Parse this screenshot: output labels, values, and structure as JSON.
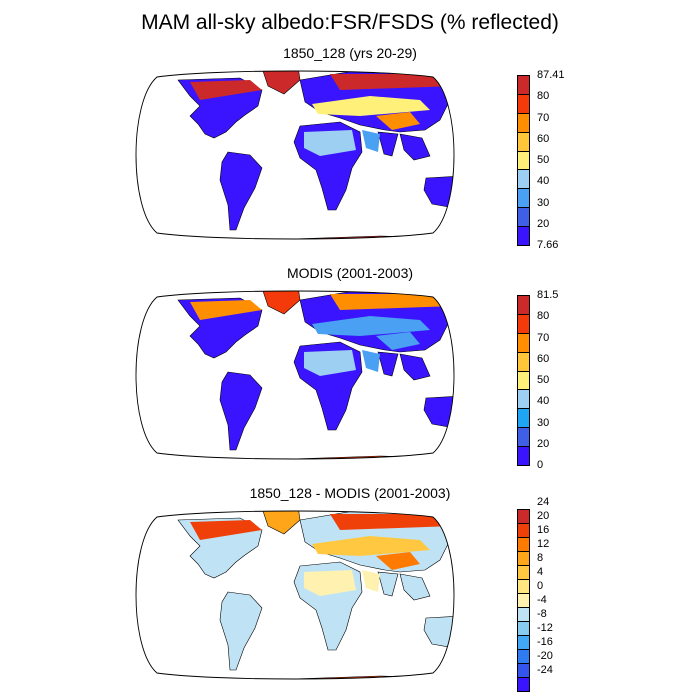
{
  "title": "MAM all-sky albedo:FSR/FSDS (% reflected)",
  "panels": [
    {
      "id": "model",
      "title": "1850_128 (yrs 20-29)",
      "colorbar": {
        "colors": [
          "#3a14ff",
          "#3f5fe6",
          "#4aa0f2",
          "#9ccff2",
          "#fff07a",
          "#ffc63a",
          "#ff8f00",
          "#f43a0a",
          "#cc2a2a"
        ],
        "labels": [
          "7.66",
          "20",
          "30",
          "40",
          "50",
          "60",
          "70",
          "80",
          "87.41"
        ]
      },
      "regions": {
        "land": "#3a14ff",
        "sahara": "#9ccff2",
        "arabia": "#4aa0f2",
        "tibet": "#ff8f00",
        "northern_high_latitudes": "#cc2a2a",
        "antarctica": "#cc2a2a",
        "greenland": "#cc2a2a",
        "mid_latitude_belt": "#fff07a"
      }
    },
    {
      "id": "modis",
      "title": "MODIS (2001-2003)",
      "colorbar": {
        "colors": [
          "#3a14ff",
          "#3f5fe6",
          "#1fa6f2",
          "#9ccff2",
          "#fff07a",
          "#ffc63a",
          "#ff8f00",
          "#f43a0a",
          "#cc2a2a"
        ],
        "labels": [
          "0",
          "20",
          "30",
          "40",
          "50",
          "60",
          "70",
          "80",
          "81.5"
        ]
      },
      "regions": {
        "land": "#3a14ff",
        "sahara": "#9ccff2",
        "arabia": "#4aa0f2",
        "tibet": "#4aa0f2",
        "northern_high_latitudes": "#ff8f00",
        "antarctica": "#f43a0a",
        "greenland": "#f43a0a",
        "mid_latitude_belt": "#4aa0f2"
      }
    },
    {
      "id": "diff",
      "title": "1850_128 - MODIS (2001-2003)",
      "colorbar": {
        "colors": [
          "#3a14ff",
          "#3355ee",
          "#2f7bf2",
          "#40a8f5",
          "#87cbf0",
          "#bfe3f5",
          "#fff2b0",
          "#ffe680",
          "#ffc840",
          "#ffa51a",
          "#ff7a00",
          "#f0400a",
          "#cc2a2a"
        ],
        "labels": [
          "-24",
          "-20",
          "-16",
          "-12",
          "-8",
          "-4",
          "0",
          "4",
          "8",
          "12",
          "16",
          "20",
          "24"
        ]
      },
      "regions": {
        "land": "#bfe3f5",
        "sahara": "#fff2b0",
        "arabia": "#fff2b0",
        "tibet": "#ff7a00",
        "northern_high_latitudes": "#f0400a",
        "antarctica": "#f0400a",
        "greenland": "#ffa51a",
        "mid_latitude_belt": "#ffc840"
      }
    }
  ]
}
